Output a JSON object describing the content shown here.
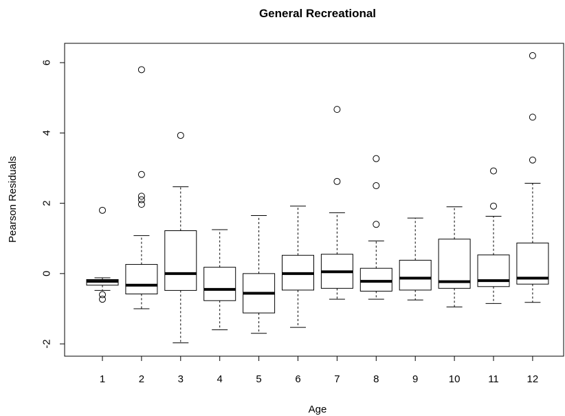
{
  "chart_data": {
    "type": "boxplot",
    "title": "General Recreational",
    "xlabel": "Age",
    "ylabel": "Pearson Residuals",
    "ylim": [
      -2.35,
      6.55
    ],
    "yticks": [
      -2,
      0,
      2,
      4,
      6
    ],
    "categories": [
      "1",
      "2",
      "3",
      "4",
      "5",
      "6",
      "7",
      "8",
      "9",
      "10",
      "11",
      "12"
    ],
    "boxes": [
      {
        "category": "1",
        "whisker_low": -0.48,
        "q1": -0.33,
        "median": -0.22,
        "q3": -0.17,
        "whisker_high": -0.12,
        "outliers": [
          1.8,
          -0.6,
          -0.73
        ]
      },
      {
        "category": "2",
        "whisker_low": -1.0,
        "q1": -0.58,
        "median": -0.33,
        "q3": 0.26,
        "whisker_high": 1.08,
        "outliers": [
          5.8,
          2.82,
          2.2,
          2.1,
          1.97
        ]
      },
      {
        "category": "3",
        "whisker_low": -1.97,
        "q1": -0.48,
        "median": 0.0,
        "q3": 1.22,
        "whisker_high": 2.47,
        "outliers": [
          3.93
        ]
      },
      {
        "category": "4",
        "whisker_low": -1.6,
        "q1": -0.77,
        "median": -0.45,
        "q3": 0.18,
        "whisker_high": 1.25,
        "outliers": []
      },
      {
        "category": "5",
        "whisker_low": -1.7,
        "q1": -1.12,
        "median": -0.56,
        "q3": 0.0,
        "whisker_high": 1.65,
        "outliers": []
      },
      {
        "category": "6",
        "whisker_low": -1.53,
        "q1": -0.47,
        "median": 0.0,
        "q3": 0.52,
        "whisker_high": 1.92,
        "outliers": []
      },
      {
        "category": "7",
        "whisker_low": -0.73,
        "q1": -0.42,
        "median": 0.05,
        "q3": 0.55,
        "whisker_high": 1.73,
        "outliers": [
          4.67,
          2.62
        ]
      },
      {
        "category": "8",
        "whisker_low": -0.73,
        "q1": -0.5,
        "median": -0.22,
        "q3": 0.15,
        "whisker_high": 0.93,
        "outliers": [
          3.27,
          2.5,
          1.4
        ]
      },
      {
        "category": "9",
        "whisker_low": -0.75,
        "q1": -0.47,
        "median": -0.13,
        "q3": 0.38,
        "whisker_high": 1.58,
        "outliers": []
      },
      {
        "category": "10",
        "whisker_low": -0.95,
        "q1": -0.42,
        "median": -0.23,
        "q3": 0.98,
        "whisker_high": 1.9,
        "outliers": []
      },
      {
        "category": "11",
        "whisker_low": -0.85,
        "q1": -0.37,
        "median": -0.2,
        "q3": 0.53,
        "whisker_high": 1.63,
        "outliers": [
          2.92,
          1.92
        ]
      },
      {
        "category": "12",
        "whisker_low": -0.82,
        "q1": -0.3,
        "median": -0.13,
        "q3": 0.87,
        "whisker_high": 2.57,
        "outliers": [
          6.2,
          4.45,
          3.23
        ]
      }
    ]
  }
}
